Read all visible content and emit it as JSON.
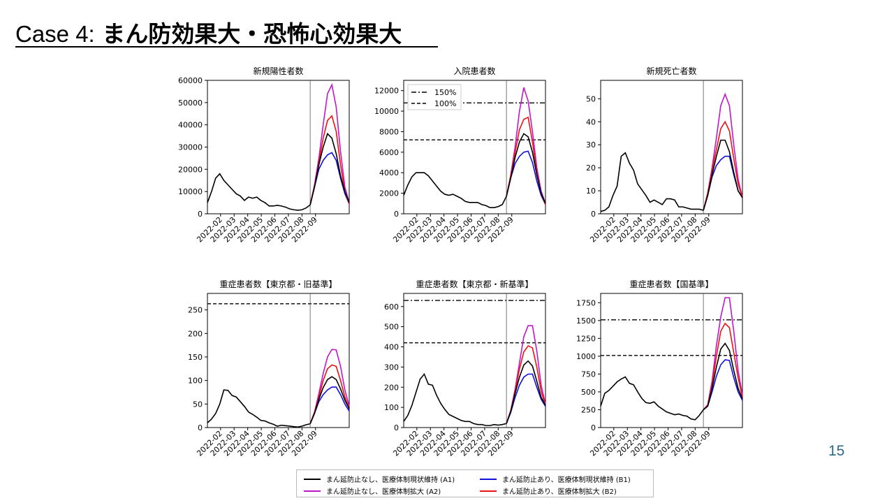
{
  "slide": {
    "title_case": "Case 4:",
    "title_main": "まん防効果大・恐怖心効果大",
    "page_number": "15"
  },
  "colors": {
    "A1": "#000000",
    "A2": "#c017c9",
    "B1": "#1010e0",
    "B2": "#ee1111"
  },
  "legend": {
    "A1": "まん延防止なし、医療体制現状維持 (A1)",
    "B1": "まん延防止あり、医療体制現状維持 (B1)",
    "A2": "まん延防止なし、医療体制拡大 (A2)",
    "B2": "まん延防止あり、医療体制拡大 (B2)"
  },
  "chart_data": [
    {
      "type": "line",
      "title": "新規陽性者数",
      "x_ticks": [
        "2022-02",
        "2022-03",
        "2022-04",
        "2022-05",
        "2022-06",
        "2022-07",
        "2022-08",
        "2022-09"
      ],
      "ylim": [
        0,
        60000
      ],
      "y_ticks": [
        0,
        10000,
        20000,
        30000,
        40000,
        50000,
        60000
      ],
      "hist": [
        5000,
        10000,
        16000,
        18000,
        15000,
        13000,
        11000,
        9000,
        8000,
        6000,
        7500,
        7000,
        7500,
        6000,
        5000,
        3500,
        3500,
        3800,
        3500,
        3000,
        2200,
        1800,
        1600,
        1800,
        2600,
        4000
      ],
      "scenarios": {
        "A1": [
          4000,
          12000,
          22000,
          30000,
          36000,
          34000,
          27000,
          17000,
          10000,
          5000
        ],
        "A2": [
          4000,
          13000,
          25000,
          40000,
          54000,
          58000,
          48000,
          28000,
          12000,
          5000
        ],
        "B1": [
          4000,
          12000,
          20000,
          24000,
          26500,
          27500,
          24000,
          16000,
          9000,
          4500
        ],
        "B2": [
          4000,
          12500,
          23000,
          34000,
          42000,
          44000,
          37000,
          22000,
          10000,
          4500
        ]
      },
      "hlines": []
    },
    {
      "type": "line",
      "title": "入院患者数",
      "x_ticks": [
        "2022-02",
        "2022-03",
        "2022-04",
        "2022-05",
        "2022-06",
        "2022-07",
        "2022-08",
        "2022-09"
      ],
      "ylim": [
        0,
        13000
      ],
      "y_ticks": [
        0,
        2000,
        4000,
        6000,
        8000,
        10000,
        12000
      ],
      "hist": [
        1800,
        2800,
        3600,
        4000,
        4000,
        4000,
        3700,
        3200,
        2700,
        2200,
        1900,
        1800,
        1900,
        1700,
        1500,
        1200,
        1100,
        1100,
        1100,
        900,
        800,
        600,
        600,
        700,
        900,
        1700
      ],
      "scenarios": {
        "A1": [
          1700,
          3500,
          5500,
          7000,
          7800,
          7500,
          6000,
          3800,
          2000,
          1000
        ],
        "A2": [
          1700,
          3800,
          6500,
          10000,
          12300,
          11000,
          8000,
          4500,
          2200,
          1000
        ],
        "B1": [
          1700,
          3500,
          4900,
          5600,
          6000,
          6100,
          5000,
          3200,
          1800,
          900
        ],
        "B2": [
          1700,
          3700,
          6000,
          8200,
          9200,
          9400,
          7000,
          4000,
          2000,
          900
        ]
      },
      "hlines": [
        {
          "label": "150%",
          "value": 10800,
          "style": "dashdot"
        },
        {
          "label": "100%",
          "value": 7200,
          "style": "dashed"
        }
      ]
    },
    {
      "type": "line",
      "title": "新規死亡者数",
      "x_ticks": [
        "2022-02",
        "2022-03",
        "2022-04",
        "2022-05",
        "2022-06",
        "2022-07",
        "2022-08",
        "2022-09"
      ],
      "ylim": [
        0,
        58
      ],
      "y_ticks": [
        0,
        10,
        20,
        30,
        40,
        50
      ],
      "hist": [
        1,
        1.5,
        3,
        8,
        12,
        25,
        26.5,
        22,
        19,
        13,
        10.5,
        8,
        5,
        6,
        5,
        4,
        6.5,
        6.5,
        6,
        3,
        3,
        2.5,
        2,
        2,
        2,
        1.5
      ],
      "scenarios": {
        "A1": [
          1.5,
          8,
          17,
          25,
          32,
          32,
          27,
          18,
          10,
          7
        ],
        "A2": [
          1.5,
          9,
          20,
          33,
          47,
          52,
          47,
          30,
          15,
          7
        ],
        "B1": [
          1.5,
          8,
          16,
          21,
          23.5,
          25,
          25,
          17,
          10,
          7
        ],
        "B2": [
          1.5,
          9,
          19,
          28,
          37,
          40,
          36,
          24,
          13,
          7
        ]
      },
      "hlines": []
    },
    {
      "type": "line",
      "title": "重症患者数【東京都・旧基準】",
      "x_ticks": [
        "2022-02",
        "2022-03",
        "2022-04",
        "2022-05",
        "2022-06",
        "2022-07",
        "2022-08",
        "2022-09"
      ],
      "ylim": [
        0,
        285
      ],
      "y_ticks": [
        0,
        50,
        100,
        150,
        200,
        250
      ],
      "hist": [
        10,
        18,
        30,
        50,
        80,
        79,
        68,
        65,
        55,
        45,
        33,
        28,
        22,
        15,
        14,
        10,
        7,
        3,
        5,
        4,
        3,
        2,
        1,
        3,
        6,
        8
      ],
      "scenarios": {
        "A1": [
          8,
          30,
          60,
          85,
          102,
          108,
          102,
          82,
          58,
          40
        ],
        "A2": [
          8,
          33,
          72,
          115,
          150,
          166,
          165,
          130,
          80,
          45
        ],
        "B1": [
          8,
          30,
          55,
          70,
          80,
          86,
          86,
          70,
          50,
          35
        ],
        "B2": [
          8,
          32,
          65,
          100,
          125,
          133,
          130,
          100,
          65,
          40
        ]
      },
      "hlines": [
        {
          "label": "",
          "value": 263,
          "style": "dashed"
        }
      ]
    },
    {
      "type": "line",
      "title": "重症患者数【東京都・新基準】",
      "x_ticks": [
        "2022-02",
        "2022-03",
        "2022-04",
        "2022-05",
        "2022-06",
        "2022-07",
        "2022-08",
        "2022-09"
      ],
      "ylim": [
        0,
        665
      ],
      "y_ticks": [
        0,
        100,
        200,
        300,
        400,
        500,
        600
      ],
      "hist": [
        30,
        60,
        110,
        175,
        240,
        265,
        215,
        210,
        160,
        120,
        90,
        65,
        55,
        45,
        35,
        30,
        30,
        20,
        15,
        15,
        10,
        10,
        15,
        12,
        15,
        20
      ],
      "scenarios": {
        "A1": [
          20,
          80,
          170,
          250,
          310,
          330,
          305,
          230,
          150,
          110
        ],
        "A2": [
          20,
          85,
          190,
          320,
          450,
          505,
          505,
          380,
          210,
          115
        ],
        "B1": [
          20,
          75,
          150,
          210,
          250,
          265,
          265,
          200,
          140,
          105
        ],
        "B2": [
          20,
          85,
          180,
          290,
          375,
          405,
          395,
          300,
          180,
          110
        ]
      },
      "hlines": [
        {
          "label": "",
          "value": 630,
          "style": "dashdot"
        },
        {
          "label": "",
          "value": 420,
          "style": "dashed"
        }
      ]
    },
    {
      "type": "line",
      "title": "重症患者数【国基準】",
      "x_ticks": [
        "2022-02",
        "2022-03",
        "2022-04",
        "2022-05",
        "2022-06",
        "2022-07",
        "2022-08",
        "2022-09"
      ],
      "ylim": [
        0,
        1880
      ],
      "y_ticks": [
        0,
        250,
        500,
        750,
        1000,
        1250,
        1500,
        1750
      ],
      "hist": [
        300,
        480,
        520,
        580,
        640,
        680,
        710,
        620,
        600,
        500,
        410,
        350,
        340,
        360,
        300,
        260,
        220,
        200,
        180,
        190,
        170,
        160,
        120,
        110,
        170,
        250
      ],
      "scenarios": {
        "A1": [
          250,
          300,
          550,
          850,
          1100,
          1180,
          1080,
          800,
          550,
          400
        ],
        "A2": [
          250,
          320,
          650,
          1150,
          1550,
          1820,
          1820,
          1350,
          800,
          450
        ],
        "B1": [
          250,
          300,
          500,
          720,
          880,
          950,
          940,
          700,
          500,
          380
        ],
        "B2": [
          250,
          310,
          600,
          1000,
          1350,
          1460,
          1400,
          1050,
          700,
          420
        ]
      },
      "hlines": [
        {
          "label": "",
          "value": 1510,
          "style": "dashdot"
        },
        {
          "label": "",
          "value": 1010,
          "style": "dashed"
        }
      ]
    }
  ]
}
